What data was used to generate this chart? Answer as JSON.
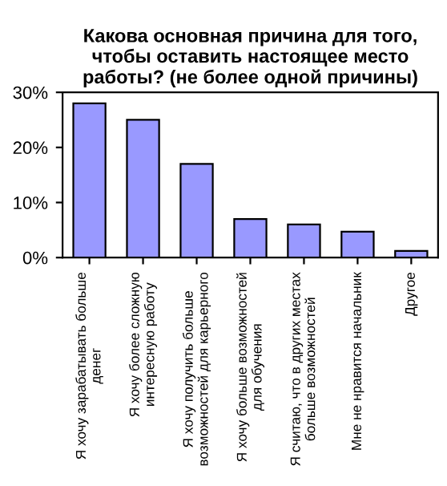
{
  "chart_data": {
    "type": "bar",
    "title": "Какова основная причина для того,\nчтобы оставить настоящее место\nработы? (не более одной причины)",
    "categories": [
      "Я хочу зарабатывать больше\nденег",
      "Я хочу более сложную\nинтересную работу",
      "Я хочу получить больше\nвозможностей для карьерного",
      "Я хочу больше возможностей\nдля обучения",
      "Я считаю, что в других местах\nбольше возможностей",
      "Мне не нравится начальник",
      "Другое"
    ],
    "values": [
      28,
      25,
      17,
      7,
      6,
      4.7,
      1.2
    ],
    "color": "#9999ff",
    "ylim": [
      0,
      30
    ],
    "yticks": [
      {
        "value": 0,
        "label": "0%"
      },
      {
        "value": 10,
        "label": "10%"
      },
      {
        "value": 20,
        "label": "20%"
      },
      {
        "value": 30,
        "label": "30%"
      }
    ],
    "grid": false
  }
}
